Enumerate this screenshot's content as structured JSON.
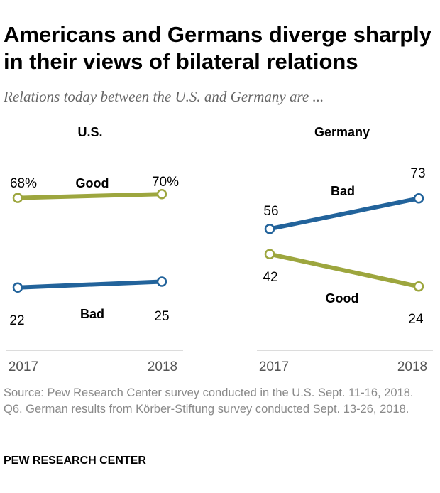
{
  "header": {
    "title": "Americans and Germans diverge sharply in their views of bilateral relations",
    "subtitle": "Relations today between the U.S. and Germany are ..."
  },
  "colors": {
    "good": "#9da63e",
    "bad": "#22639b",
    "axis": "#d0d0d0",
    "text": "#000000",
    "year": "#555555"
  },
  "chart_data": [
    {
      "type": "line",
      "panel": "U.S.",
      "title": "U.S.",
      "x": [
        "2017",
        "2018"
      ],
      "ylim": [
        0,
        100
      ],
      "series": [
        {
          "name": "Good",
          "values": [
            68,
            70
          ],
          "labels": [
            "68%",
            "70%"
          ]
        },
        {
          "name": "Bad",
          "values": [
            22,
            25
          ],
          "labels": [
            "22",
            "25"
          ]
        }
      ]
    },
    {
      "type": "line",
      "panel": "Germany",
      "title": "Germany",
      "x": [
        "2017",
        "2018"
      ],
      "ylim": [
        0,
        100
      ],
      "series": [
        {
          "name": "Bad",
          "values": [
            56,
            73
          ],
          "labels": [
            "56",
            "73"
          ]
        },
        {
          "name": "Good",
          "values": [
            42,
            24
          ],
          "labels": [
            "42",
            "24"
          ]
        }
      ]
    }
  ],
  "source": "Source: Pew Research Center survey conducted in the U.S. Sept. 11-16, 2018. Q6. German results from Körber-Stiftung survey conducted Sept. 13-26, 2018.",
  "footer": "PEW RESEARCH CENTER"
}
